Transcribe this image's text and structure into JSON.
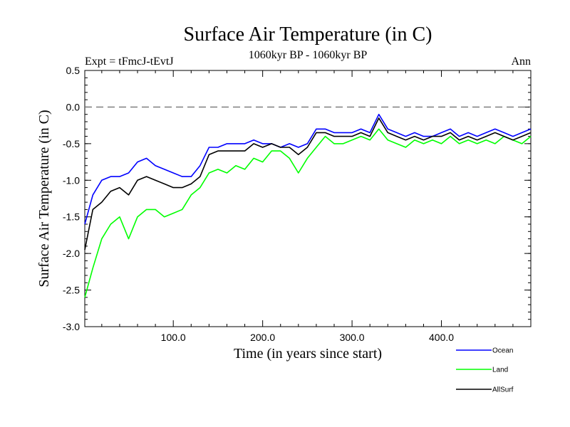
{
  "chart_data": {
    "type": "line",
    "title": "Surface Air Temperature (in C)",
    "subtitle": "1060kyr BP - 1060kyr BP",
    "left_annotation": "Expt = tFmcJ-tEvtJ",
    "right_annotation": "Ann",
    "xlabel": "Time (in years since start)",
    "ylabel": "Surface Air Temperature (in C)",
    "xlim": [
      1,
      500
    ],
    "ylim": [
      -3.0,
      0.5
    ],
    "xticks": [
      100,
      200,
      300,
      400
    ],
    "xtick_labels": [
      "100.0",
      "200.0",
      "300.0",
      "400.0"
    ],
    "yticks": [
      -3.0,
      -2.5,
      -2.0,
      -1.5,
      -1.0,
      -0.5,
      0.0,
      0.5
    ],
    "ytick_labels": [
      "-3.0",
      "-2.5",
      "-2.0",
      "-1.5",
      "-1.0",
      "-0.5",
      "0.0",
      "0.5"
    ],
    "reference_line": 0.0,
    "legend_position": "bottom-right",
    "series": [
      {
        "name": "Ocean",
        "color": "#0000ff",
        "x": [
          1,
          10,
          20,
          30,
          40,
          50,
          60,
          70,
          80,
          90,
          100,
          110,
          120,
          130,
          140,
          150,
          160,
          170,
          180,
          190,
          200,
          210,
          220,
          230,
          240,
          250,
          260,
          270,
          280,
          290,
          300,
          310,
          320,
          330,
          340,
          350,
          360,
          370,
          380,
          390,
          400,
          410,
          420,
          430,
          440,
          450,
          460,
          470,
          480,
          490,
          500
        ],
        "y": [
          -1.6,
          -1.2,
          -1.0,
          -0.95,
          -0.95,
          -0.9,
          -0.75,
          -0.7,
          -0.8,
          -0.85,
          -0.9,
          -0.95,
          -0.95,
          -0.8,
          -0.55,
          -0.55,
          -0.5,
          -0.5,
          -0.5,
          -0.45,
          -0.5,
          -0.5,
          -0.55,
          -0.5,
          -0.55,
          -0.5,
          -0.3,
          -0.3,
          -0.35,
          -0.35,
          -0.35,
          -0.3,
          -0.35,
          -0.1,
          -0.3,
          -0.35,
          -0.4,
          -0.35,
          -0.4,
          -0.4,
          -0.35,
          -0.3,
          -0.4,
          -0.35,
          -0.4,
          -0.35,
          -0.3,
          -0.35,
          -0.4,
          -0.35,
          -0.3
        ]
      },
      {
        "name": "Land",
        "color": "#00ff00",
        "x": [
          1,
          10,
          20,
          30,
          40,
          50,
          60,
          70,
          80,
          90,
          100,
          110,
          120,
          130,
          140,
          150,
          160,
          170,
          180,
          190,
          200,
          210,
          220,
          230,
          240,
          250,
          260,
          270,
          280,
          290,
          300,
          310,
          320,
          330,
          340,
          350,
          360,
          370,
          380,
          390,
          400,
          410,
          420,
          430,
          440,
          450,
          460,
          470,
          480,
          490,
          500
        ],
        "y": [
          -2.6,
          -2.2,
          -1.8,
          -1.6,
          -1.5,
          -1.8,
          -1.5,
          -1.4,
          -1.4,
          -1.5,
          -1.45,
          -1.4,
          -1.2,
          -1.1,
          -0.9,
          -0.85,
          -0.9,
          -0.8,
          -0.85,
          -0.7,
          -0.75,
          -0.6,
          -0.6,
          -0.7,
          -0.9,
          -0.7,
          -0.55,
          -0.4,
          -0.5,
          -0.5,
          -0.45,
          -0.4,
          -0.45,
          -0.3,
          -0.45,
          -0.5,
          -0.55,
          -0.45,
          -0.5,
          -0.45,
          -0.5,
          -0.4,
          -0.5,
          -0.45,
          -0.5,
          -0.45,
          -0.5,
          -0.4,
          -0.45,
          -0.5,
          -0.4
        ]
      },
      {
        "name": "AllSurf",
        "color": "#000000",
        "x": [
          1,
          10,
          20,
          30,
          40,
          50,
          60,
          70,
          80,
          90,
          100,
          110,
          120,
          130,
          140,
          150,
          160,
          170,
          180,
          190,
          200,
          210,
          220,
          230,
          240,
          250,
          260,
          270,
          280,
          290,
          300,
          310,
          320,
          330,
          340,
          350,
          360,
          370,
          380,
          390,
          400,
          410,
          420,
          430,
          440,
          450,
          460,
          470,
          480,
          490,
          500
        ],
        "y": [
          -1.95,
          -1.4,
          -1.3,
          -1.15,
          -1.1,
          -1.2,
          -1.0,
          -0.95,
          -1.0,
          -1.05,
          -1.1,
          -1.1,
          -1.05,
          -0.95,
          -0.65,
          -0.6,
          -0.6,
          -0.6,
          -0.6,
          -0.5,
          -0.55,
          -0.5,
          -0.55,
          -0.55,
          -0.65,
          -0.55,
          -0.35,
          -0.35,
          -0.4,
          -0.4,
          -0.4,
          -0.35,
          -0.4,
          -0.15,
          -0.35,
          -0.4,
          -0.45,
          -0.4,
          -0.45,
          -0.4,
          -0.4,
          -0.35,
          -0.45,
          -0.4,
          -0.45,
          -0.4,
          -0.35,
          -0.4,
          -0.45,
          -0.4,
          -0.35
        ]
      }
    ]
  }
}
